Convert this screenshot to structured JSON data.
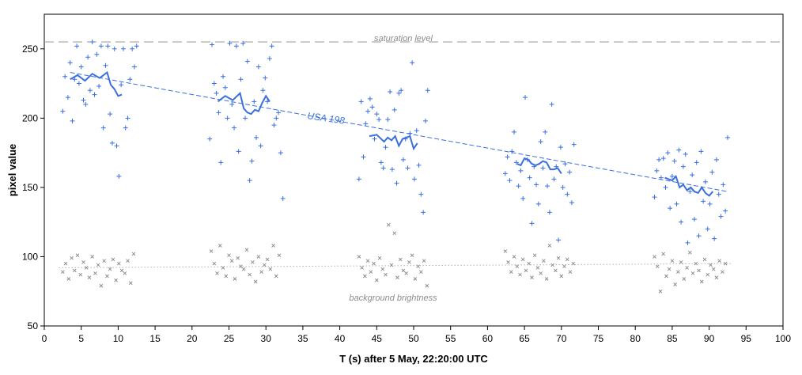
{
  "chart_data": {
    "type": "scatter",
    "title": "",
    "xlabel": "T (s) after 5 May, 22:20:00 UTC",
    "ylabel": "pixel value",
    "xlim": [
      0,
      100
    ],
    "ylim": [
      50,
      275
    ],
    "x_ticks": [
      0,
      5,
      10,
      15,
      20,
      25,
      30,
      35,
      40,
      45,
      50,
      55,
      60,
      65,
      70,
      75,
      80,
      85,
      90,
      95,
      100
    ],
    "y_ticks": [
      50,
      100,
      150,
      200,
      250
    ],
    "grid": false,
    "colors": {
      "signal": "#3a6fe0",
      "background": "#8c8c8c",
      "saturation": "#9a9a9a"
    },
    "annotations": {
      "saturation_label": "saturation level",
      "saturation_value": 255,
      "background_label": "background brightness",
      "series_label": "USA 198"
    },
    "trend_line": {
      "x": [
        3.5,
        92.5
      ],
      "y": [
        233,
        147
      ]
    },
    "background_line": {
      "x": [
        2,
        93
      ],
      "y": [
        92,
        95
      ]
    },
    "series": [
      {
        "kind": "signal-points",
        "passes": [
          {
            "x": [
              2.5,
              2.8,
              3.2,
              3.5,
              3.8,
              4.1,
              4.4,
              4.7,
              5.0,
              5.3,
              5.6,
              5.9,
              6.2,
              6.5,
              6.8,
              7.1,
              7.4,
              7.7,
              8.0,
              8.3,
              8.6,
              8.9,
              9.2,
              9.5,
              9.8,
              10.1,
              10.4,
              10.7,
              11.0,
              11.3,
              11.6,
              11.9,
              12.2,
              12.5
            ],
            "y": [
              205,
              230,
              215,
              240,
              198,
              228,
              252,
              225,
              237,
              213,
              210,
              244,
              220,
              255,
              217,
              246,
              223,
              252,
              193,
              238,
              252,
              203,
              182,
              250,
              180,
              158,
              224,
              250,
              193,
              200,
              228,
              250,
              237,
              252
            ]
          },
          {
            "x": [
              22.4,
              22.7,
              23.0,
              23.3,
              23.6,
              23.9,
              24.2,
              24.5,
              24.8,
              25.1,
              25.4,
              25.7,
              26.0,
              26.3,
              26.6,
              26.9,
              27.2,
              27.5,
              27.8,
              28.1,
              28.4,
              28.7,
              29.0,
              29.3,
              29.6,
              29.9,
              30.2,
              30.5,
              30.8,
              31.1,
              31.4,
              31.7,
              32.0,
              32.3
            ],
            "y": [
              185,
              253,
              225,
              218,
              204,
              168,
              230,
              222,
              200,
              254,
              210,
              193,
              252,
              176,
              228,
              254,
              200,
              241,
              155,
              169,
              212,
              186,
              237,
              180,
              220,
              229,
              212,
              243,
              252,
              195,
              200,
              204,
              175,
              142
            ]
          },
          {
            "x": [
              42.6,
              42.9,
              43.2,
              43.5,
              43.8,
              44.1,
              44.4,
              44.7,
              45.0,
              45.3,
              45.6,
              45.9,
              46.2,
              46.5,
              46.8,
              47.1,
              47.4,
              47.7,
              48.0,
              48.3,
              48.6,
              48.9,
              49.2,
              49.5,
              49.8,
              50.1,
              50.4,
              50.7,
              51.0,
              51.3,
              51.6,
              51.9
            ],
            "y": [
              156,
              212,
              172,
              196,
              205,
              214,
              208,
              185,
              203,
              199,
              168,
              164,
              179,
              199,
              219,
              163,
              206,
              153,
              218,
              220,
              170,
              185,
              164,
              189,
              240,
              156,
              191,
              166,
              145,
              132,
              198,
              220
            ]
          },
          {
            "x": [
              62.4,
              62.7,
              63.0,
              63.3,
              63.6,
              63.9,
              64.2,
              64.5,
              64.8,
              65.1,
              65.4,
              65.7,
              66.0,
              66.3,
              66.6,
              66.9,
              67.2,
              67.5,
              67.8,
              68.1,
              68.4,
              68.7,
              69.0,
              69.3,
              69.6,
              69.9,
              70.2,
              70.5,
              70.8,
              71.1,
              71.4,
              71.7
            ],
            "y": [
              160,
              172,
              155,
              176,
              190,
              168,
              151,
              162,
              142,
              215,
              170,
              157,
              124,
              165,
              152,
              138,
              183,
              164,
              190,
              151,
              132,
              210,
              156,
              165,
              112,
              179,
              150,
              167,
              145,
              161,
              139,
              181
            ]
          },
          {
            "x": [
              82.6,
              82.9,
              83.2,
              83.5,
              83.8,
              84.1,
              84.4,
              84.7,
              85.0,
              85.3,
              85.6,
              85.9,
              86.2,
              86.5,
              86.8,
              87.1,
              87.4,
              87.7,
              88.0,
              88.3,
              88.6,
              88.9,
              89.2,
              89.5,
              89.8,
              90.1,
              90.4,
              90.7,
              91.0,
              91.3,
              91.6,
              91.9,
              92.2,
              92.5
            ],
            "y": [
              143,
              162,
              170,
              157,
              171,
              150,
              175,
              135,
              158,
              169,
              138,
              177,
              125,
              165,
              174,
              110,
              147,
              159,
              127,
              168,
              115,
              176,
              140,
              154,
              120,
              138,
              161,
              113,
              170,
              145,
              129,
              152,
              133,
              186
            ]
          }
        ]
      },
      {
        "kind": "signal-smoothed",
        "passes": [
          {
            "x": [
              3.5,
              4.5,
              5.5,
              6.5,
              7.5,
              8.5,
              9.0,
              9.5,
              10.0,
              10.5
            ],
            "y": [
              228,
              231,
              227,
              232,
              229,
              233,
              224,
              221,
              216,
              217
            ]
          },
          {
            "x": [
              23.5,
              24.5,
              25.5,
              26.5,
              27.0,
              27.5,
              28.0,
              28.5,
              29.0,
              29.5,
              30.0,
              30.5
            ],
            "y": [
              212,
              216,
              213,
              218,
              207,
              204,
              203,
              206,
              205,
              211,
              216,
              212
            ]
          },
          {
            "x": [
              44.0,
              45.0,
              46.0,
              46.5,
              47.0,
              47.5,
              48.0,
              48.5,
              49.0,
              49.5,
              50.0,
              50.5
            ],
            "y": [
              187,
              188,
              183,
              186,
              184,
              187,
              180,
              185,
              186,
              187,
              178,
              182
            ]
          },
          {
            "x": [
              64.0,
              64.5,
              65.0,
              65.5,
              66.0,
              66.5,
              67.0,
              67.5,
              68.0,
              68.5,
              69.0,
              69.5,
              70.0
            ],
            "y": [
              167,
              166,
              171,
              170,
              167,
              166,
              167,
              169,
              168,
              163,
              163,
              164,
              160
            ]
          },
          {
            "x": [
              84.0,
              84.5,
              85.0,
              85.5,
              86.0,
              86.5,
              87.0,
              87.5,
              88.0,
              88.5,
              89.0,
              89.5,
              90.0,
              90.5
            ],
            "y": [
              157,
              156,
              155,
              158,
              150,
              152,
              148,
              150,
              147,
              146,
              150,
              146,
              144,
              147
            ]
          }
        ]
      },
      {
        "kind": "background-points",
        "passes": [
          {
            "x": [
              2.5,
              2.9,
              3.3,
              3.7,
              4.1,
              4.5,
              4.9,
              5.3,
              5.7,
              6.1,
              6.5,
              6.9,
              7.3,
              7.7,
              8.1,
              8.5,
              8.9,
              9.3,
              9.7,
              10.1,
              10.5,
              10.9,
              11.3,
              11.7,
              12.1
            ],
            "y": [
              89,
              95,
              84,
              99,
              90,
              101,
              87,
              96,
              92,
              85,
              100,
              88,
              94,
              79,
              97,
              86,
              91,
              98,
              83,
              95,
              90,
              88,
              97,
              81,
              102
            ]
          },
          {
            "x": [
              22.6,
              23.0,
              23.4,
              23.8,
              24.2,
              24.6,
              25.0,
              25.4,
              25.8,
              26.2,
              26.6,
              27.0,
              27.4,
              27.8,
              28.2,
              28.6,
              29.0,
              29.4,
              29.8,
              30.2,
              30.6,
              31.0,
              31.4,
              31.8
            ],
            "y": [
              104,
              95,
              88,
              108,
              92,
              86,
              101,
              97,
              84,
              99,
              93,
              91,
              105,
              87,
              96,
              82,
              100,
              89,
              94,
              98,
              91,
              108,
              86,
              101
            ]
          },
          {
            "x": [
              42.6,
              43.0,
              43.4,
              43.8,
              44.2,
              44.6,
              45.0,
              45.4,
              45.8,
              46.2,
              46.6,
              47.0,
              47.4,
              47.8,
              48.2,
              48.6,
              49.0,
              49.4,
              49.8,
              50.2,
              50.6,
              51.0,
              51.4,
              51.8
            ],
            "y": [
              100,
              92,
              86,
              97,
              89,
              95,
              83,
              99,
              91,
              87,
              123,
              94,
              117,
              85,
              98,
              90,
              88,
              96,
              101,
              84,
              93,
              89,
              97,
              79
            ]
          },
          {
            "x": [
              62.4,
              62.8,
              63.2,
              63.6,
              64.0,
              64.4,
              64.8,
              65.2,
              65.6,
              66.0,
              66.4,
              66.8,
              67.2,
              67.6,
              68.0,
              68.4,
              68.8,
              69.2,
              69.6,
              70.0,
              70.4,
              70.8,
              71.2,
              71.6
            ],
            "y": [
              104,
              96,
              89,
              100,
              93,
              87,
              98,
              90,
              95,
              85,
              101,
              92,
              88,
              97,
              84,
              108,
              94,
              90,
              99,
              86,
              93,
              98,
              89,
              95
            ]
          },
          {
            "x": [
              82.6,
              83.0,
              83.4,
              83.8,
              84.2,
              84.6,
              85.0,
              85.4,
              85.8,
              86.2,
              86.6,
              87.0,
              87.4,
              87.8,
              88.2,
              88.6,
              89.0,
              89.4,
              89.8,
              90.2,
              90.6,
              91.0,
              91.4,
              91.8,
              92.2
            ],
            "y": [
              100,
              93,
              75,
              102,
              86,
              91,
              97,
              80,
              89,
              96,
              84,
              92,
              103,
              88,
              95,
              90,
              82,
              98,
              87,
              94,
              91,
              85,
              97,
              89,
              95
            ]
          }
        ]
      }
    ]
  }
}
